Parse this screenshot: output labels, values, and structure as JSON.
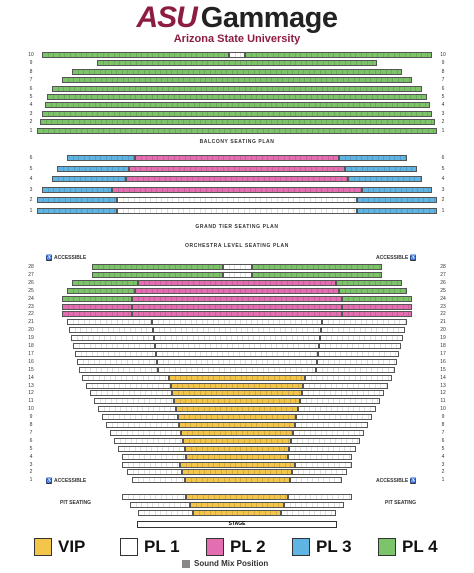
{
  "header": {
    "logo_asu": "ASU",
    "logo_gammage": "Gammage",
    "university": "Arizona State University"
  },
  "sections": {
    "balcony": "BALCONY SEATING PLAN",
    "grand_tier": "GRAND TIER SEATING PLAN",
    "orchestra": "ORCHESTRA LEVEL SEATING PLAN",
    "pit": "PIT SEATING",
    "stage": "STAGE"
  },
  "accessible_label": "ACCESSIBLE",
  "wheelchair_icon": "wheelchair-icon",
  "legend": [
    {
      "label": "VIP",
      "color": "#f3c64b"
    },
    {
      "label": "PL 1",
      "color": "#ffffff"
    },
    {
      "label": "PL 2",
      "color": "#e36fb0"
    },
    {
      "label": "PL 3",
      "color": "#5fb4e2"
    },
    {
      "label": "PL 4",
      "color": "#7cc36a"
    }
  ],
  "sound_mix": "Sound Mix Position",
  "colors": {
    "vip": "#f3c64b",
    "pl1": "#ffffff",
    "pl2": "#e36fb0",
    "pl3": "#5fb4e2",
    "pl4": "#7cc36a",
    "mix": "#888888"
  },
  "balcony_rows": [
    "10",
    "9",
    "8",
    "7",
    "6",
    "5",
    "4",
    "3",
    "2",
    "1"
  ],
  "grand_tier_rows": [
    "6",
    "5",
    "4",
    "3",
    "2",
    "1"
  ],
  "orchestra_rows": [
    "28",
    "27",
    "26",
    "25",
    "24",
    "23",
    "22",
    "21",
    "20",
    "19",
    "18",
    "17",
    "16",
    "15",
    "14",
    "13",
    "12",
    "11",
    "10",
    "9",
    "8",
    "7",
    "6",
    "5",
    "4",
    "3",
    "2",
    "1"
  ]
}
